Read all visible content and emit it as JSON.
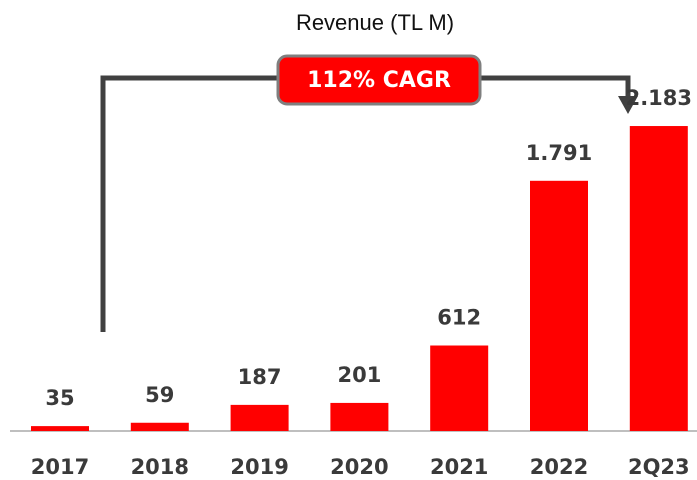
{
  "chart_data": {
    "type": "bar",
    "title": "Revenue (TL M)",
    "annotation": "112% CAGR",
    "categories": [
      "2017",
      "2018",
      "2019",
      "2020",
      "2021",
      "2022",
      "2Q23"
    ],
    "values": [
      35,
      59,
      187,
      201,
      612,
      1791,
      2183
    ],
    "value_labels": [
      "35",
      "59",
      "187",
      "201",
      "612",
      "1.791",
      "2.183"
    ],
    "color": "#ff0000"
  }
}
